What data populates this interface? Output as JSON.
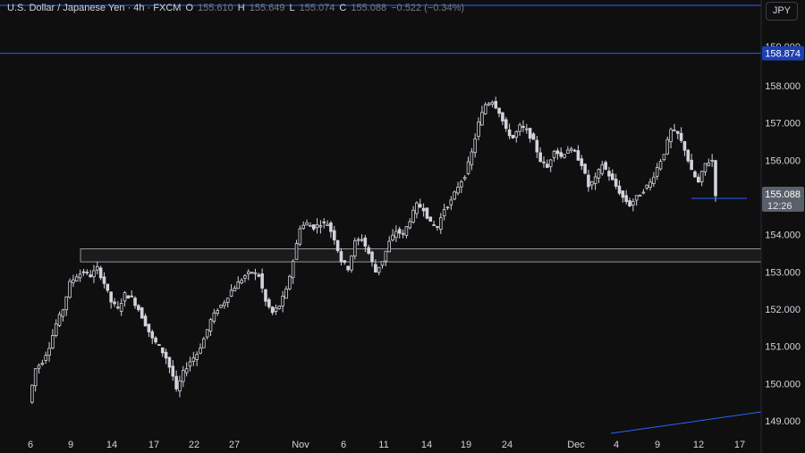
{
  "legend": {
    "symbol_title": "U.S. Dollar / Japanese Yen · 4h · FXCM",
    "o_label": "O",
    "o_value": "155.610",
    "h_label": "H",
    "h_value": "155.649",
    "l_label": "L",
    "l_value": "155.074",
    "c_label": "C",
    "c_value": "155.088",
    "change": "−0.522 (−0.34%)"
  },
  "currency_button": "JPY",
  "colors": {
    "background": "#0f0f0f",
    "candle": "#d1d4dc",
    "axis_text": "#d1d4dc",
    "blue_line": "#2962ff",
    "price_tag_last": "#5b5f6a",
    "price_tag_blue": "#1e40af"
  },
  "chart_data": {
    "type": "candlestick",
    "y_axis_labels": [
      "158.000",
      "157.000",
      "156.000",
      "155.000",
      "154.000",
      "153.000",
      "152.000",
      "151.000",
      "150.000",
      "149.000"
    ],
    "x_axis_labels": [
      "6",
      "9",
      "14",
      "17",
      "22",
      "27",
      "Nov",
      "6",
      "11",
      "14",
      "19",
      "24",
      "Dec",
      "4",
      "9",
      "12",
      "17"
    ],
    "last_price": "155.088",
    "countdown": "12:26",
    "horizontal_level": "158.874",
    "top_partial_label": "159.000",
    "support_zone": [
      153.27,
      153.62
    ],
    "close_path": [
      [
        0,
        149.5
      ],
      [
        2,
        150.4
      ],
      [
        4,
        150.6
      ],
      [
        6,
        151.0
      ],
      [
        8,
        151.6
      ],
      [
        10,
        152.0
      ],
      [
        12,
        152.7
      ],
      [
        14,
        152.9
      ],
      [
        16,
        153.0
      ],
      [
        18,
        152.9
      ],
      [
        20,
        153.1
      ],
      [
        22,
        152.7
      ],
      [
        24,
        152.2
      ],
      [
        26,
        152.0
      ],
      [
        28,
        152.4
      ],
      [
        30,
        152.3
      ],
      [
        32,
        152.0
      ],
      [
        34,
        151.6
      ],
      [
        36,
        151.2
      ],
      [
        38,
        151.0
      ],
      [
        40,
        150.7
      ],
      [
        42,
        150.2
      ],
      [
        43,
        149.8
      ],
      [
        45,
        150.3
      ],
      [
        47,
        150.6
      ],
      [
        49,
        150.8
      ],
      [
        51,
        151.2
      ],
      [
        53,
        151.7
      ],
      [
        55,
        152.0
      ],
      [
        57,
        152.2
      ],
      [
        59,
        152.5
      ],
      [
        61,
        152.7
      ],
      [
        63,
        152.9
      ],
      [
        65,
        153.0
      ],
      [
        67,
        152.9
      ],
      [
        69,
        152.2
      ],
      [
        71,
        151.9
      ],
      [
        73,
        152.1
      ],
      [
        75,
        152.5
      ],
      [
        77,
        153.3
      ],
      [
        79,
        154.2
      ],
      [
        81,
        154.3
      ],
      [
        83,
        154.2
      ],
      [
        85,
        154.3
      ],
      [
        87,
        154.3
      ],
      [
        89,
        153.9
      ],
      [
        91,
        153.3
      ],
      [
        93,
        153.1
      ],
      [
        95,
        153.8
      ],
      [
        97,
        153.9
      ],
      [
        99,
        153.5
      ],
      [
        101,
        153.0
      ],
      [
        103,
        153.3
      ],
      [
        105,
        153.8
      ],
      [
        107,
        154.1
      ],
      [
        109,
        154.0
      ],
      [
        111,
        154.4
      ],
      [
        113,
        154.8
      ],
      [
        115,
        154.7
      ],
      [
        117,
        154.3
      ],
      [
        119,
        154.2
      ],
      [
        121,
        154.7
      ],
      [
        123,
        154.9
      ],
      [
        125,
        155.3
      ],
      [
        127,
        155.6
      ],
      [
        129,
        156.2
      ],
      [
        131,
        157.0
      ],
      [
        133,
        157.5
      ],
      [
        135,
        157.6
      ],
      [
        137,
        157.3
      ],
      [
        139,
        156.8
      ],
      [
        141,
        156.6
      ],
      [
        143,
        156.9
      ],
      [
        145,
        156.8
      ],
      [
        147,
        156.5
      ],
      [
        149,
        156.0
      ],
      [
        151,
        155.8
      ],
      [
        153,
        156.3
      ],
      [
        155,
        156.1
      ],
      [
        157,
        156.3
      ],
      [
        159,
        156.2
      ],
      [
        161,
        155.9
      ],
      [
        163,
        155.3
      ],
      [
        165,
        155.5
      ],
      [
        167,
        155.9
      ],
      [
        169,
        155.6
      ],
      [
        171,
        155.3
      ],
      [
        173,
        155.0
      ],
      [
        175,
        154.8
      ],
      [
        177,
        155.0
      ],
      [
        179,
        155.2
      ],
      [
        181,
        155.4
      ],
      [
        183,
        155.8
      ],
      [
        185,
        156.2
      ],
      [
        187,
        156.8
      ],
      [
        189,
        156.7
      ],
      [
        191,
        156.3
      ],
      [
        193,
        155.7
      ],
      [
        195,
        155.4
      ],
      [
        197,
        155.9
      ],
      [
        199,
        156.0
      ],
      [
        200,
        155.1
      ]
    ]
  }
}
